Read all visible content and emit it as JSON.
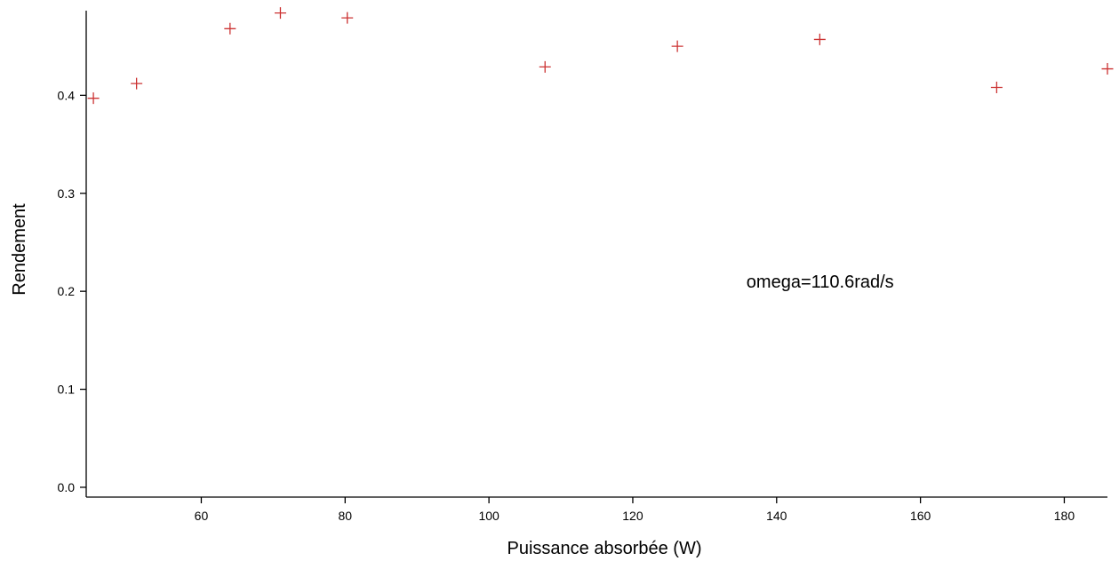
{
  "chart_data": {
    "type": "scatter",
    "title": "",
    "xlabel": "Puissance absorbée (W)",
    "ylabel": "Rendement",
    "xlim": [
      44,
      186
    ],
    "ylim": [
      -0.01,
      0.49
    ],
    "xticks": [
      60,
      80,
      100,
      120,
      140,
      160,
      180
    ],
    "xtick_labels": [
      "60",
      "80",
      "100",
      "120",
      "140",
      "160",
      "180"
    ],
    "yticks": [
      0.0,
      0.1,
      0.2,
      0.3,
      0.4
    ],
    "ytick_labels": [
      "0.0",
      "0.1",
      "0.2",
      "0.3",
      "0.4"
    ],
    "grid": false,
    "legend": "none",
    "marker": "plus",
    "marker_color": "#cc3333",
    "annotation": "omega=110.6rad/s",
    "annotation_position": {
      "x": 135.8,
      "y": 0.21
    },
    "series": [
      {
        "x": [
          45.0,
          51.0,
          64.0,
          71.0,
          80.3,
          107.8,
          126.2,
          146.0,
          170.6,
          186.0
        ],
        "y": [
          0.397,
          0.412,
          0.468,
          0.484,
          0.479,
          0.429,
          0.45,
          0.457,
          0.408,
          0.427
        ]
      }
    ]
  }
}
